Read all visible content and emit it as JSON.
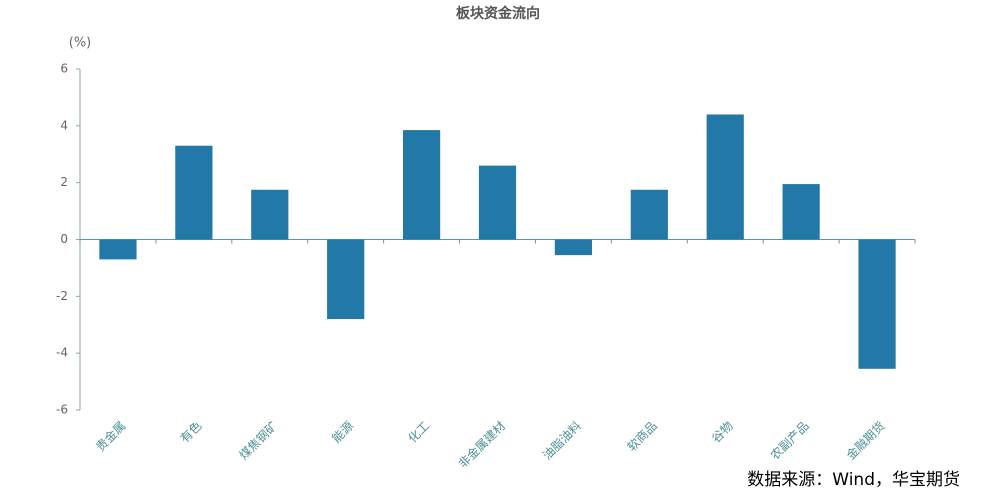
{
  "chart_data": {
    "type": "bar",
    "title": "板块资金流向",
    "y_label": "(%)",
    "categories": [
      "贵金属",
      "有色",
      "煤焦钢矿",
      "能源",
      "化工",
      "非金属建材",
      "油脂油料",
      "软商品",
      "谷物",
      "农副产品",
      "金融期货"
    ],
    "values": [
      -0.7,
      3.3,
      1.75,
      -2.8,
      3.85,
      2.6,
      -0.55,
      1.75,
      4.4,
      1.95,
      -4.55
    ],
    "color": "#2278a6",
    "ylim": [
      -6,
      6
    ],
    "yticks": [
      -6,
      -4,
      -2,
      0,
      2,
      4,
      6
    ],
    "grid": false,
    "source": "数据来源：Wind，华宝期货"
  }
}
